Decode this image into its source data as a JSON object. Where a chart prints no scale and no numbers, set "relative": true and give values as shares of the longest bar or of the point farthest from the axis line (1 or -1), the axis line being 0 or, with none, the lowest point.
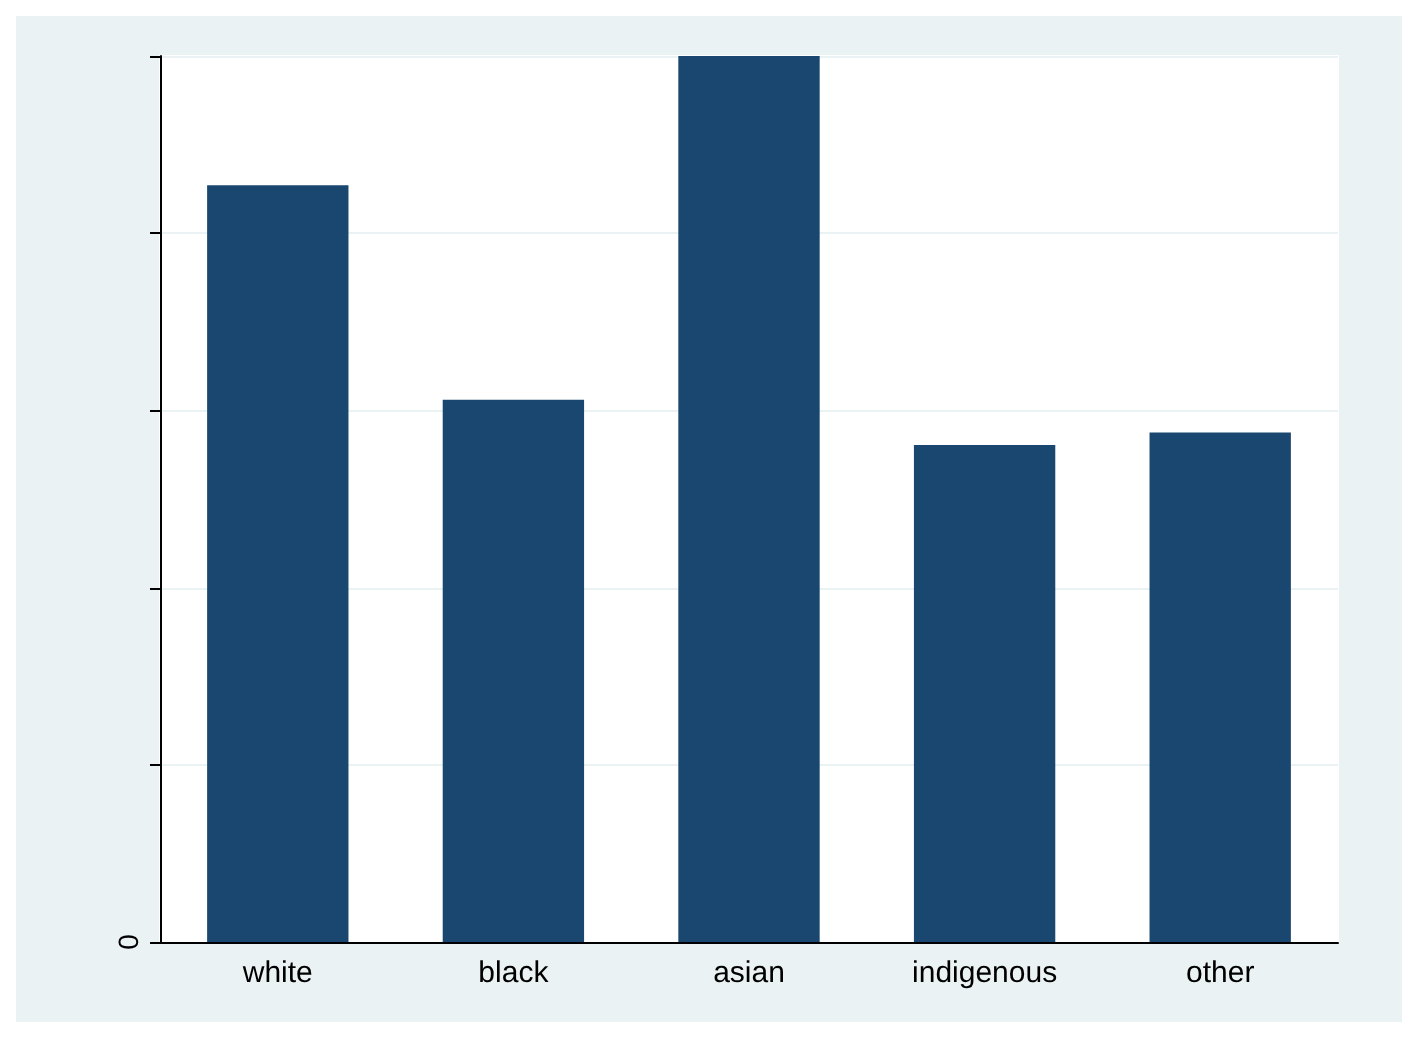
{
  "chart_data": {
    "type": "bar",
    "relative": true,
    "categories": [
      "white",
      "black",
      "asian",
      "indigenous",
      "other"
    ],
    "values": [
      0.854,
      0.612,
      1,
      0.561,
      0.575
    ],
    "color": "#1a476f",
    "annotations": [
      "0"
    ],
    "grid": "y"
  }
}
